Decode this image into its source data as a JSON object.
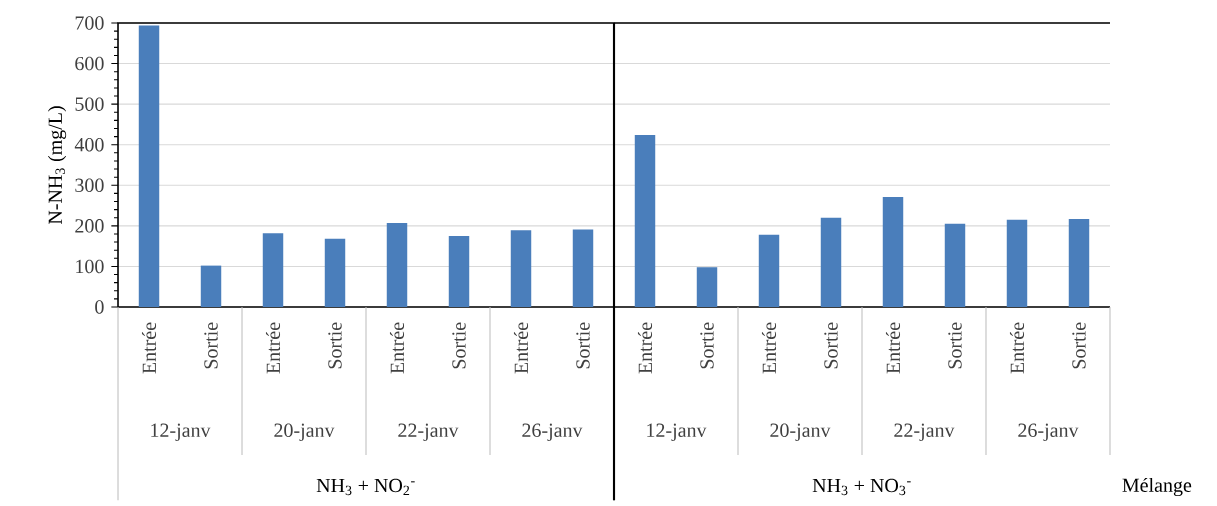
{
  "chart_data": [
    {
      "type": "bar",
      "ylabel": "N-NH$_{3}$ (mg/L)",
      "categories": [
        "Entrée",
        "Sortie",
        "Entrée",
        "Sortie",
        "Entrée",
        "Sortie",
        "Entrée",
        "Sortie"
      ],
      "values": [
        694,
        102,
        182,
        168,
        207,
        175,
        189,
        191
      ],
      "color": "#4a7ebb",
      "ylim": [
        0,
        700
      ],
      "yticks": [
        0,
        100,
        200,
        300,
        400,
        500,
        600,
        700
      ],
      "grid": "y",
      "annotations": [
        "12-janv",
        "20-janv",
        "22-janv",
        "26-janv",
        "NH$_{3}$ + NO$_{2}$$^{-}$"
      ]
    },
    {
      "type": "bar",
      "categories": [
        "Entrée",
        "Sortie",
        "Entrée",
        "Sortie",
        "Entrée",
        "Sortie",
        "Entrée",
        "Sortie"
      ],
      "values": [
        424,
        98,
        178,
        220,
        271,
        205,
        215,
        217
      ],
      "color": "#4a7ebb",
      "ylim": [
        0,
        700
      ],
      "yticks": [
        0,
        100,
        200,
        300,
        400,
        500,
        600,
        700
      ],
      "grid": "y",
      "tick_labels": "x",
      "annotations": [
        "12-janv",
        "20-janv",
        "22-janv",
        "26-janv",
        "NH$_{3}$ + NO$_{3}$$^{-}$",
        "Mélange"
      ]
    }
  ]
}
